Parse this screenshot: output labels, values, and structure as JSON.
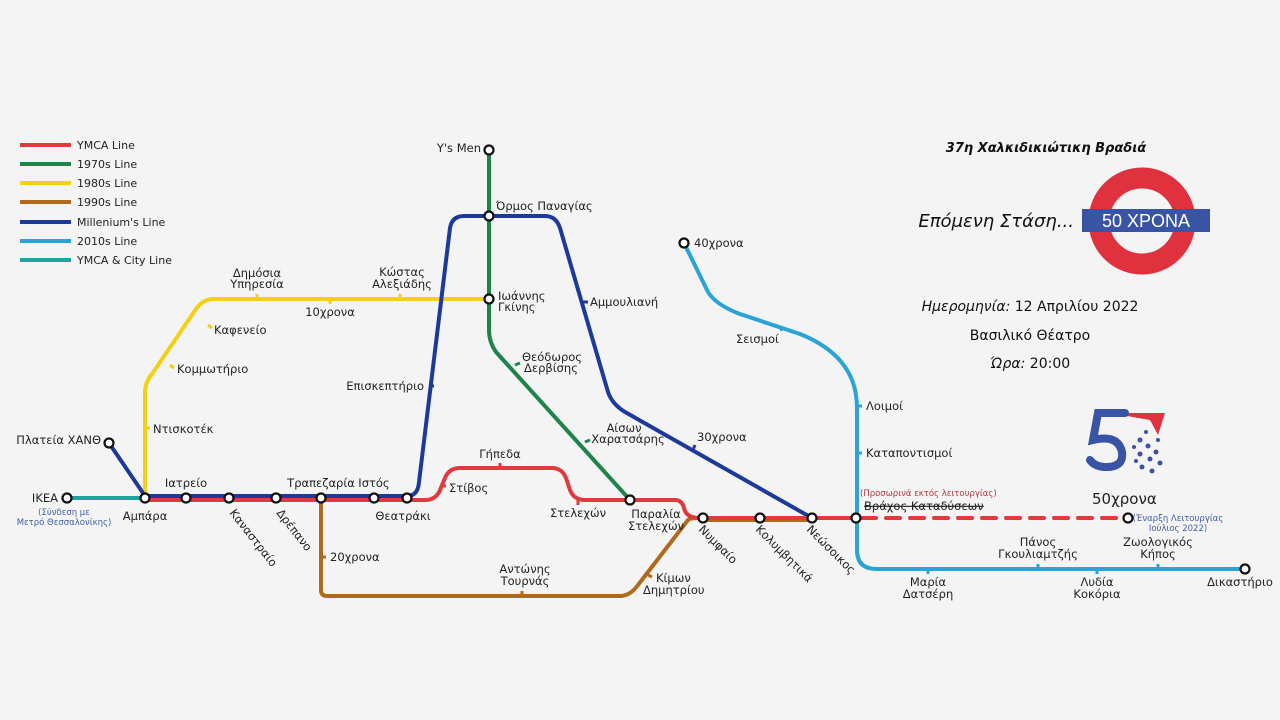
{
  "legend": [
    {
      "label": "YMCA Line",
      "color": "#e03a3e"
    },
    {
      "label": "1970s Line",
      "color": "#1e8449"
    },
    {
      "label": "1980s Line",
      "color": "#f5cf12"
    },
    {
      "label": "1990s Line",
      "color": "#b06a1e"
    },
    {
      "label": "Millenium's Line",
      "color": "#1d3a9a"
    },
    {
      "label": "2010s Line",
      "color": "#2aa3d6"
    },
    {
      "label": "YMCA & City Line",
      "color": "#1fa5a0"
    }
  ],
  "event": {
    "title": "37η Χαλκιδικιώτικη Βραδιά",
    "next_stop": "Επόμενη Στάση...",
    "roundel_text": "50 ΧΡΟΝΑ",
    "date_label": "Ημερομηνία:",
    "date_value": "12 Απριλίου 2022",
    "venue": "Βασιλικό Θέατρο",
    "time_label": "Ώρα:",
    "time_value": "20:00",
    "logo_text": "50"
  },
  "stations": {
    "ikea": "IKEA",
    "ikea_note1": "(Σύνδεση με",
    "ikea_note2": "Μετρό Θεσσαλονίκης)",
    "plateia": "Πλατεία ΧΑΝΘ",
    "ampara": "Αμπάρα",
    "iatreio": "Ιατρείο",
    "kanastraio": "Καναστραίο",
    "drepano": "Δρέπανο",
    "trapezaria": "Τραπεζαρία",
    "istos": "Ιστός",
    "theatraki": "Θεατράκι",
    "stivos": "Στίβος",
    "gipeda": "Γήπεδα",
    "stelexon": "Στελεχών",
    "paralia1": "Παραλία",
    "paralia2": "Στελεχών",
    "nymfaio": "Νυμφαίο",
    "kolymvitika": "Κολυμβητικά",
    "neossoikos": "Νεώσοικος",
    "vrachos": "Βράχος Καταδύσεων",
    "vrachos_note": "(Προσωρινά εκτός λειτουργίας)",
    "fifty": "50χρονα",
    "fifty_note1": "(Έναρξη Λειτουργίας",
    "fifty_note2": "Ιούλιος 2022)",
    "ntiskotek": "Ντισκοτέκ",
    "kommotirio": "Κομμωτήριο",
    "kafeneio": "Καφενείο",
    "dimosia1": "Δημόσια",
    "dimosia2": "Υπηρεσία",
    "ten": "10χρονα",
    "kostas1": "Κώστας",
    "kostas2": "Αλεξιάδης",
    "ioannis1": "Ιωάννης",
    "ioannis2": "Γκίνης",
    "ysmen": "Y's Men",
    "ormos": "Όρμος Παναγίας",
    "episkeptirio": "Επισκεπτήριο",
    "ammouliani": "Αμμουλιανή",
    "theodoros1": "Θεόδωρος",
    "theodoros2": "Δερβίσης",
    "aison1": "Αίσων",
    "aison2": "Χαρατσάρης",
    "thirty": "30χρονα",
    "twenty": "20χρονα",
    "antonis1": "Αντώνης",
    "antonis2": "Τουρνάς",
    "kimon1": "Κίμων",
    "kimon2": "Δημητρίου",
    "forty": "40χρονα",
    "seismoi": "Σεισμοί",
    "loimoi": "Λοιμοί",
    "katapontismoi": "Καταποντισμοί",
    "maria1": "Μαρία",
    "maria2": "Δατσέρη",
    "panos1": "Πάνος",
    "panos2": "Γκουλιαμτζής",
    "lydia1": "Λυδία",
    "lydia2": "Κοκόρια",
    "zoo1": "Ζωολογικός",
    "zoo2": "Κήπος",
    "dikastirio": "Δικαστήριο"
  }
}
